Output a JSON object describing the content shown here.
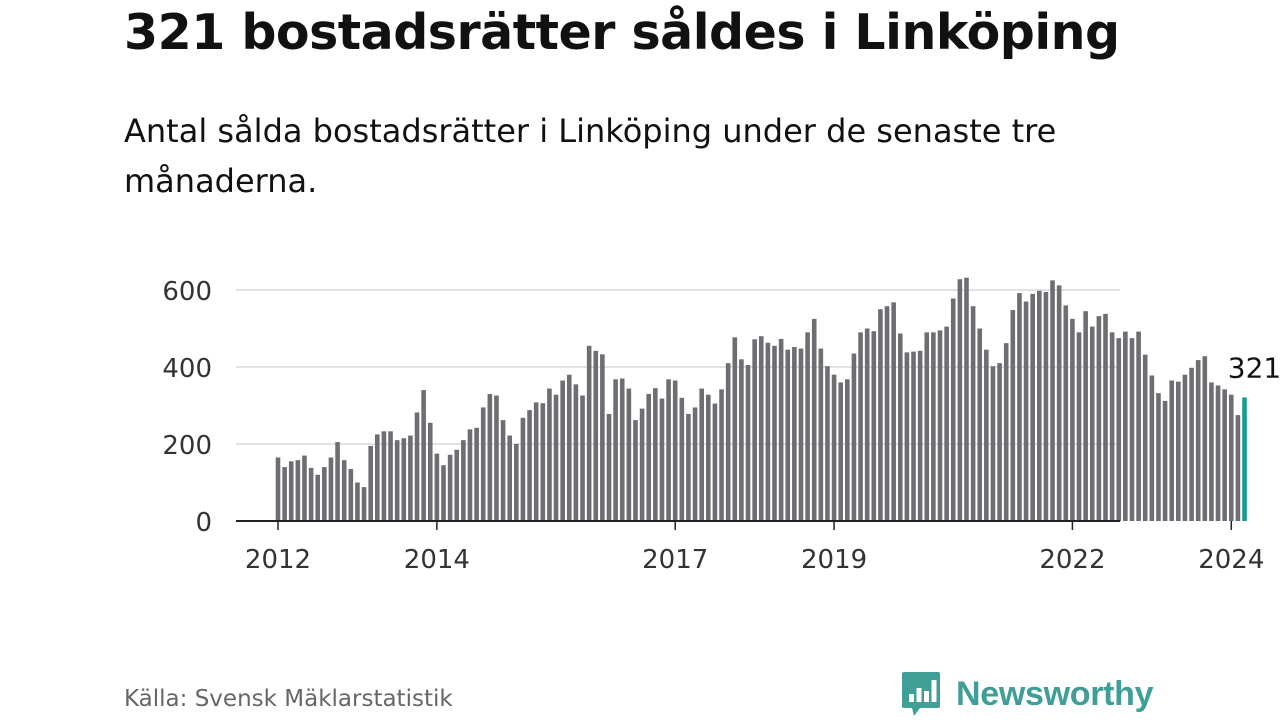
{
  "title": "321 bostadsrätter såldes i Linköping",
  "subtitle": "Antal sålda bostadsrätter i Linköping under de senaste tre månaderna.",
  "source": "Källa: Svensk Mäklarstatistik",
  "brand": "Newsworthy",
  "colors": {
    "bar": "#6e6d72",
    "highlight": "#1a9a92",
    "grid": "#d9d9d9",
    "axis": "#222222",
    "brand": "#3f9e95"
  },
  "chart_data": {
    "type": "bar",
    "title": "321 bostadsrätter såldes i Linköping",
    "xlabel": "",
    "ylabel": "",
    "ylim": [
      0,
      650
    ],
    "yticks": [
      0,
      200,
      400,
      600
    ],
    "xticks": [
      "2012",
      "2014",
      "2017",
      "2019",
      "2022",
      "2024"
    ],
    "xtick_month_index": [
      0,
      24,
      60,
      84,
      120,
      144
    ],
    "start": "2012-01",
    "end": "2024-02",
    "highlight_label": "321",
    "series": [
      {
        "name": "Antal sålda bostadsrätter",
        "values": [
          165,
          140,
          155,
          158,
          170,
          138,
          120,
          140,
          165,
          205,
          158,
          135,
          100,
          88,
          195,
          225,
          233,
          233,
          210,
          215,
          222,
          282,
          340,
          255,
          175,
          145,
          172,
          185,
          210,
          238,
          242,
          295,
          330,
          326,
          262,
          222,
          200,
          268,
          288,
          308,
          306,
          344,
          328,
          365,
          380,
          355,
          326,
          455,
          442,
          433,
          278,
          368,
          370,
          344,
          262,
          292,
          330,
          345,
          318,
          368,
          365,
          320,
          278,
          295,
          344,
          328,
          305,
          342,
          410,
          477,
          420,
          405,
          472,
          480,
          463,
          455,
          473,
          445,
          452,
          448,
          490,
          525,
          448,
          402,
          380,
          360,
          368,
          435,
          490,
          500,
          493,
          550,
          558,
          568,
          487,
          438,
          440,
          442,
          490,
          490,
          495,
          505,
          578,
          628,
          632,
          558,
          500,
          445,
          402,
          410,
          462,
          548,
          592,
          570,
          590,
          598,
          595,
          625,
          612,
          560,
          525,
          490,
          545,
          505,
          532,
          538,
          490,
          475,
          492,
          475,
          492,
          432,
          378,
          332,
          312,
          365,
          362,
          380,
          398,
          418,
          428,
          360,
          352,
          342,
          328,
          275,
          321
        ]
      }
    ]
  }
}
